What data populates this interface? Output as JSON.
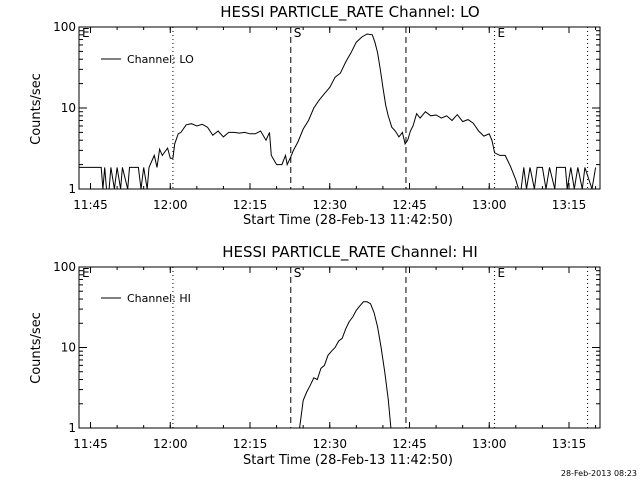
{
  "timestamp": "28-Feb-2013 08:23",
  "chart_data": [
    {
      "type": "line",
      "title": "HESSI PARTICLE_RATE Channel: LO",
      "xlabel": "Start Time (28-Feb-13 11:42:50)",
      "ylabel": "Counts/sec",
      "yscale": "log",
      "ylim": [
        1,
        100
      ],
      "xlim": [
        "11:42:50",
        "13:20:50"
      ],
      "x_ticks": [
        "11:45",
        "12:00",
        "12:15",
        "12:30",
        "12:45",
        "13:00",
        "13:15"
      ],
      "y_ticks": [
        "1",
        "10",
        "100"
      ],
      "legend": {
        "label": "Channel: LO",
        "placement": "top-left"
      },
      "markers": [
        {
          "label": "E",
          "time": "11:42:50",
          "style": "dotted"
        },
        {
          "label": "",
          "time": "12:00:30",
          "style": "dotted"
        },
        {
          "label": "S",
          "time": "12:22:40",
          "style": "dashed"
        },
        {
          "label": "",
          "time": "12:44:20",
          "style": "dashed"
        },
        {
          "label": "E",
          "time": "13:01:00",
          "style": "dotted"
        },
        {
          "label": "",
          "time": "13:18:30",
          "style": "dotted"
        }
      ],
      "series": [
        {
          "points": [
            [
              "11:42:50",
              1.85
            ],
            [
              "11:47:00",
              1.85
            ],
            [
              "11:47:20",
              1.0
            ],
            [
              "11:47:40",
              1.85
            ],
            [
              "11:48:00",
              1.0
            ],
            [
              "11:48:30",
              1.0
            ],
            [
              "11:48:50",
              1.85
            ],
            [
              "11:49:30",
              1.0
            ],
            [
              "11:50:00",
              1.85
            ],
            [
              "11:50:40",
              1.0
            ],
            [
              "11:51:00",
              1.85
            ],
            [
              "11:52:00",
              1.0
            ],
            [
              "11:52:20",
              1.85
            ],
            [
              "11:54:00",
              1.85
            ],
            [
              "11:54:30",
              1.0
            ],
            [
              "11:55:00",
              1.85
            ],
            [
              "11:55:40",
              1.0
            ],
            [
              "11:56:00",
              1.85
            ],
            [
              "11:57:00",
              2.6
            ],
            [
              "11:57:30",
              1.85
            ],
            [
              "11:58:00",
              3.1
            ],
            [
              "11:58:30",
              2.6
            ],
            [
              "11:59:30",
              3.2
            ],
            [
              "12:00:00",
              2.4
            ],
            [
              "12:00:30",
              2.4
            ],
            [
              "12:00:50",
              3.6
            ],
            [
              "12:01:30",
              4.8
            ],
            [
              "12:02:00",
              5.0
            ],
            [
              "12:03:00",
              6.2
            ],
            [
              "12:04:00",
              6.4
            ],
            [
              "12:05:00",
              6.0
            ],
            [
              "12:06:00",
              6.3
            ],
            [
              "12:07:00",
              5.8
            ],
            [
              "12:08:00",
              4.6
            ],
            [
              "12:09:00",
              5.2
            ],
            [
              "12:10:00",
              4.4
            ],
            [
              "12:11:00",
              5.0
            ],
            [
              "12:12:00",
              5.0
            ],
            [
              "12:13:00",
              4.9
            ],
            [
              "12:14:00",
              5.0
            ],
            [
              "12:15:00",
              4.8
            ],
            [
              "12:16:00",
              4.8
            ],
            [
              "12:17:00",
              5.2
            ],
            [
              "12:18:00",
              4.0
            ],
            [
              "12:18:40",
              5.0
            ],
            [
              "12:19:00",
              2.6
            ],
            [
              "12:20:00",
              2.0
            ],
            [
              "12:21:00",
              2.0
            ],
            [
              "12:21:40",
              2.6
            ],
            [
              "12:22:00",
              2.0
            ],
            [
              "12:22:40",
              2.5
            ],
            [
              "12:23:10",
              3.0
            ],
            [
              "12:24:00",
              3.8
            ],
            [
              "12:25:00",
              5.5
            ],
            [
              "12:26:00",
              7.0
            ],
            [
              "12:27:00",
              10.0
            ],
            [
              "12:28:00",
              12.5
            ],
            [
              "12:29:00",
              15.0
            ],
            [
              "12:30:00",
              18.0
            ],
            [
              "12:31:00",
              24.0
            ],
            [
              "12:32:00",
              27.0
            ],
            [
              "12:33:00",
              37.0
            ],
            [
              "12:34:00",
              48.0
            ],
            [
              "12:35:00",
              65.0
            ],
            [
              "12:36:00",
              75.0
            ],
            [
              "12:37:00",
              82.0
            ],
            [
              "12:38:00",
              80.0
            ],
            [
              "12:38:30",
              65.0
            ],
            [
              "12:39:00",
              48.0
            ],
            [
              "12:39:30",
              30.0
            ],
            [
              "12:40:00",
              18.0
            ],
            [
              "12:40:30",
              11.0
            ],
            [
              "12:41:00",
              8.0
            ],
            [
              "12:41:40",
              5.8
            ],
            [
              "12:42:20",
              5.2
            ],
            [
              "12:43:00",
              4.4
            ],
            [
              "12:43:40",
              5.0
            ],
            [
              "12:44:10",
              3.6
            ],
            [
              "12:44:40",
              4.0
            ],
            [
              "12:45:10",
              5.2
            ],
            [
              "12:45:40",
              6.0
            ],
            [
              "12:46:20",
              8.5
            ],
            [
              "12:47:00",
              7.5
            ],
            [
              "12:48:00",
              9.0
            ],
            [
              "12:49:00",
              8.0
            ],
            [
              "12:50:00",
              8.2
            ],
            [
              "12:51:00",
              7.5
            ],
            [
              "12:52:00",
              8.0
            ],
            [
              "12:53:00",
              7.0
            ],
            [
              "12:54:00",
              8.3
            ],
            [
              "12:55:00",
              6.8
            ],
            [
              "12:56:00",
              7.2
            ],
            [
              "12:57:00",
              6.5
            ],
            [
              "12:58:00",
              5.2
            ],
            [
              "12:59:00",
              4.5
            ],
            [
              "13:00:00",
              4.8
            ],
            [
              "13:00:30",
              4.0
            ],
            [
              "13:01:00",
              2.8
            ],
            [
              "13:02:00",
              2.6
            ],
            [
              "13:03:00",
              2.6
            ],
            [
              "13:04:00",
              1.9
            ],
            [
              "13:05:00",
              1.3
            ],
            [
              "13:05:30",
              1.0
            ],
            [
              "13:06:00",
              1.0
            ],
            [
              "13:06:30",
              1.85
            ],
            [
              "13:07:00",
              1.0
            ],
            [
              "13:07:40",
              1.85
            ],
            [
              "13:08:30",
              1.0
            ],
            [
              "13:09:00",
              1.85
            ],
            [
              "13:10:00",
              1.85
            ],
            [
              "13:10:40",
              1.0
            ],
            [
              "13:11:20",
              1.85
            ],
            [
              "13:12:20",
              1.0
            ],
            [
              "13:12:40",
              1.85
            ],
            [
              "13:14:20",
              1.85
            ],
            [
              "13:14:40",
              1.0
            ],
            [
              "13:15:20",
              1.85
            ],
            [
              "13:16:00",
              1.0
            ],
            [
              "13:16:40",
              1.85
            ],
            [
              "13:17:30",
              1.0
            ],
            [
              "13:18:00",
              1.85
            ],
            [
              "13:19:20",
              1.0
            ],
            [
              "13:20:00",
              1.85
            ]
          ]
        }
      ]
    },
    {
      "type": "line",
      "title": "HESSI PARTICLE_RATE Channel: HI",
      "xlabel": "Start Time (28-Feb-13 11:42:50)",
      "ylabel": "Counts/sec",
      "yscale": "log",
      "ylim": [
        1,
        100
      ],
      "xlim": [
        "11:42:50",
        "13:20:50"
      ],
      "x_ticks": [
        "11:45",
        "12:00",
        "12:15",
        "12:30",
        "12:45",
        "13:00",
        "13:15"
      ],
      "y_ticks": [
        "1",
        "10",
        "100"
      ],
      "legend": {
        "label": "Channel: HI",
        "placement": "top-left"
      },
      "markers": [
        {
          "label": "E",
          "time": "11:42:50",
          "style": "dotted"
        },
        {
          "label": "",
          "time": "12:00:30",
          "style": "dotted"
        },
        {
          "label": "S",
          "time": "12:22:40",
          "style": "dashed"
        },
        {
          "label": "",
          "time": "12:44:20",
          "style": "dashed"
        },
        {
          "label": "E",
          "time": "13:01:00",
          "style": "dotted"
        },
        {
          "label": "",
          "time": "13:18:30",
          "style": "dotted"
        }
      ],
      "series": [
        {
          "points": [
            [
              "12:24:00",
              0.75
            ],
            [
              "12:24:20",
              1.0
            ],
            [
              "12:25:00",
              2.2
            ],
            [
              "12:25:40",
              2.8
            ],
            [
              "12:26:20",
              3.4
            ],
            [
              "12:27:00",
              4.2
            ],
            [
              "12:27:40",
              4.0
            ],
            [
              "12:28:20",
              5.5
            ],
            [
              "12:29:00",
              6.0
            ],
            [
              "12:29:40",
              8.0
            ],
            [
              "12:30:20",
              9.0
            ],
            [
              "12:31:00",
              10.0
            ],
            [
              "12:31:40",
              12.0
            ],
            [
              "12:32:20",
              13.0
            ],
            [
              "12:33:00",
              17.0
            ],
            [
              "12:33:40",
              21.0
            ],
            [
              "12:34:20",
              24.0
            ],
            [
              "12:35:00",
              29.0
            ],
            [
              "12:35:40",
              33.0
            ],
            [
              "12:36:20",
              37.0
            ],
            [
              "12:37:00",
              37.0
            ],
            [
              "12:37:40",
              35.0
            ],
            [
              "12:38:20",
              27.0
            ],
            [
              "12:39:00",
              18.0
            ],
            [
              "12:39:40",
              10.0
            ],
            [
              "12:40:20",
              5.0
            ],
            [
              "12:41:00",
              2.3
            ],
            [
              "12:41:30",
              1.0
            ],
            [
              "12:41:40",
              0.75
            ]
          ]
        }
      ]
    }
  ]
}
